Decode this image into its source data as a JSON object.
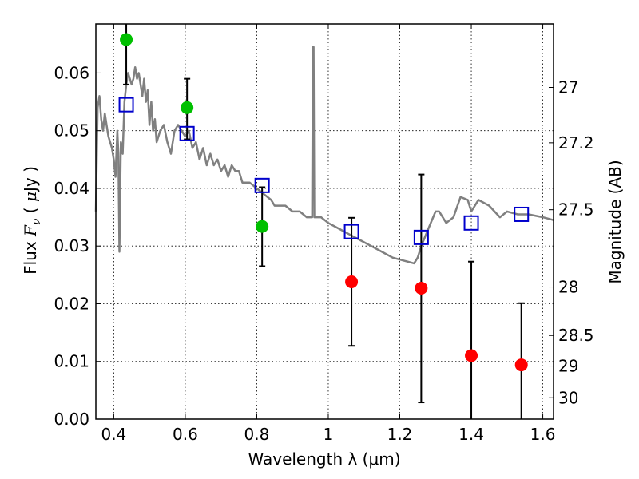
{
  "chart_data": {
    "type": "scatter",
    "title": "",
    "xlabel": "Wavelength  λ (μm)",
    "ylabel": "Flux  F_ν  ( μJy )",
    "y2label": "Magnitude (AB)",
    "xlim": [
      0.35,
      1.63
    ],
    "ylim": [
      0.0,
      0.0685
    ],
    "grid": true,
    "x_ticks": [
      0.4,
      0.6,
      0.8,
      1.0,
      1.2,
      1.4,
      1.6
    ],
    "x_tick_labels": [
      "0.4",
      "0.6",
      "0.8",
      "1",
      "1.2",
      "1.4",
      "1.6"
    ],
    "y_ticks": [
      0.0,
      0.01,
      0.02,
      0.03,
      0.04,
      0.05,
      0.06
    ],
    "y_tick_labels": [
      "0.00",
      "0.01",
      "0.02",
      "0.03",
      "0.04",
      "0.05",
      "0.06"
    ],
    "y2_ticks": [
      {
        "label": "27",
        "flux": 0.0575
      },
      {
        "label": "27.2",
        "flux": 0.0479
      },
      {
        "label": "27.5",
        "flux": 0.0363
      },
      {
        "label": "28",
        "flux": 0.0229
      },
      {
        "label": "28.5",
        "flux": 0.0145
      },
      {
        "label": "29",
        "flux": 0.0092
      },
      {
        "label": "30",
        "flux": 0.0037
      }
    ],
    "series": [
      {
        "kind": "line",
        "color": "#808080",
        "x": [
          0.35,
          0.355,
          0.36,
          0.365,
          0.37,
          0.375,
          0.38,
          0.385,
          0.39,
          0.395,
          0.4,
          0.405,
          0.41,
          0.413,
          0.416,
          0.42,
          0.425,
          0.43,
          0.435,
          0.44,
          0.445,
          0.45,
          0.455,
          0.46,
          0.465,
          0.47,
          0.475,
          0.48,
          0.485,
          0.49,
          0.495,
          0.5,
          0.505,
          0.51,
          0.515,
          0.52,
          0.53,
          0.54,
          0.55,
          0.56,
          0.57,
          0.58,
          0.59,
          0.6,
          0.61,
          0.62,
          0.63,
          0.64,
          0.65,
          0.66,
          0.67,
          0.68,
          0.69,
          0.7,
          0.71,
          0.72,
          0.73,
          0.74,
          0.75,
          0.76,
          0.78,
          0.8,
          0.82,
          0.84,
          0.85,
          0.86,
          0.88,
          0.9,
          0.92,
          0.94,
          0.95,
          0.955,
          0.957,
          0.959,
          0.961,
          0.965,
          0.98,
          1.0,
          1.03,
          1.06,
          1.09,
          1.12,
          1.15,
          1.18,
          1.21,
          1.24,
          1.25,
          1.26,
          1.28,
          1.3,
          1.31,
          1.33,
          1.35,
          1.37,
          1.39,
          1.4,
          1.42,
          1.45,
          1.48,
          1.5,
          1.53,
          1.56,
          1.6,
          1.63
        ],
        "y": [
          0.036,
          0.054,
          0.056,
          0.052,
          0.05,
          0.053,
          0.051,
          0.049,
          0.048,
          0.047,
          0.045,
          0.042,
          0.05,
          0.046,
          0.029,
          0.048,
          0.046,
          0.055,
          0.058,
          0.06,
          0.059,
          0.058,
          0.059,
          0.061,
          0.059,
          0.06,
          0.058,
          0.056,
          0.059,
          0.055,
          0.057,
          0.051,
          0.055,
          0.05,
          0.052,
          0.048,
          0.05,
          0.051,
          0.048,
          0.046,
          0.05,
          0.051,
          0.05,
          0.049,
          0.05,
          0.047,
          0.048,
          0.045,
          0.047,
          0.044,
          0.046,
          0.044,
          0.045,
          0.043,
          0.044,
          0.042,
          0.044,
          0.043,
          0.043,
          0.041,
          0.041,
          0.04,
          0.039,
          0.038,
          0.037,
          0.037,
          0.037,
          0.036,
          0.036,
          0.035,
          0.035,
          0.035,
          0.0645,
          0.0645,
          0.035,
          0.035,
          0.035,
          0.034,
          0.033,
          0.032,
          0.031,
          0.03,
          0.029,
          0.028,
          0.0275,
          0.027,
          0.028,
          0.03,
          0.033,
          0.036,
          0.036,
          0.034,
          0.035,
          0.0385,
          0.038,
          0.036,
          0.038,
          0.037,
          0.035,
          0.036,
          0.0355,
          0.0355,
          0.035,
          0.0345
        ]
      },
      {
        "kind": "open-square",
        "color": "#0000cc",
        "x": [
          0.435,
          0.605,
          0.815,
          1.065,
          1.26,
          1.4,
          1.54
        ],
        "y": [
          0.0545,
          0.0495,
          0.0405,
          0.0325,
          0.0315,
          0.034,
          0.0355
        ]
      },
      {
        "kind": "point",
        "color": "#00c000",
        "x": [
          0.435,
          0.605,
          0.815
        ],
        "y": [
          0.0658,
          0.054,
          0.0334
        ]
      },
      {
        "kind": "point",
        "color": "#ff0000",
        "x": [
          1.065,
          1.26,
          1.4,
          1.54
        ],
        "y": [
          0.0238,
          0.0227,
          0.011,
          0.0094
        ]
      }
    ],
    "error_bars": [
      {
        "x": 0.435,
        "y_low": 0.058,
        "y_high": 0.0685
      },
      {
        "x": 0.605,
        "y_low": 0.0485,
        "y_high": 0.059
      },
      {
        "x": 0.815,
        "y_low": 0.0265,
        "y_high": 0.0402
      },
      {
        "x": 1.065,
        "y_low": 0.0127,
        "y_high": 0.0349
      },
      {
        "x": 1.26,
        "y_low": 0.0029,
        "y_high": 0.0424
      },
      {
        "x": 1.4,
        "y_low": 0.0,
        "y_high": 0.0273
      },
      {
        "x": 1.54,
        "y_low": 0.0,
        "y_high": 0.0201
      }
    ]
  }
}
